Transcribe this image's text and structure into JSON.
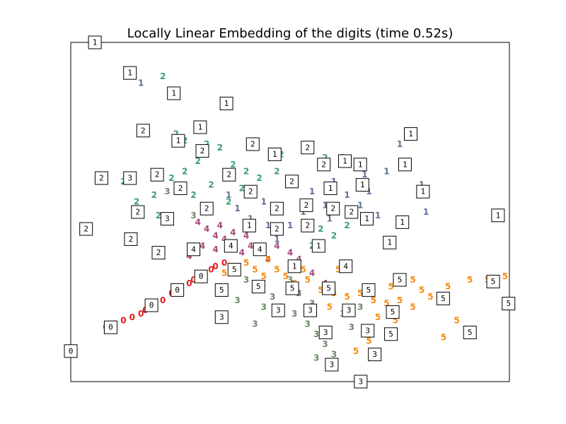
{
  "chart_data": {
    "type": "scatter",
    "title": "Locally Linear Embedding of the digits (time 0.52s)",
    "xlabel": "",
    "ylabel": "",
    "xlim": [
      0,
      1
    ],
    "ylim": [
      0,
      1
    ],
    "grid": false,
    "axis_ticks": false,
    "classes": [
      {
        "label": "0",
        "color": "#e41a1c"
      },
      {
        "label": "1",
        "color": "#5e6e96"
      },
      {
        "label": "2",
        "color": "#3d9b7a"
      },
      {
        "label": "3",
        "color": "#6b8866"
      },
      {
        "label": "4",
        "color": "#a6497a"
      },
      {
        "label": "5",
        "color": "#f58a0c"
      }
    ],
    "points": [
      {
        "x": 0.08,
        "y": 0.16,
        "c": "0"
      },
      {
        "x": 0.1,
        "y": 0.17,
        "c": "0"
      },
      {
        "x": 0.12,
        "y": 0.18,
        "c": "0"
      },
      {
        "x": 0.14,
        "y": 0.19,
        "c": "0"
      },
      {
        "x": 0.16,
        "y": 0.2,
        "c": "0"
      },
      {
        "x": 0.17,
        "y": 0.21,
        "c": "0"
      },
      {
        "x": 0.19,
        "y": 0.23,
        "c": "0"
      },
      {
        "x": 0.21,
        "y": 0.24,
        "c": "0"
      },
      {
        "x": 0.23,
        "y": 0.26,
        "c": "0"
      },
      {
        "x": 0.25,
        "y": 0.27,
        "c": "0"
      },
      {
        "x": 0.27,
        "y": 0.29,
        "c": "0"
      },
      {
        "x": 0.28,
        "y": 0.3,
        "c": "0"
      },
      {
        "x": 0.3,
        "y": 0.31,
        "c": "0"
      },
      {
        "x": 0.32,
        "y": 0.33,
        "c": "0"
      },
      {
        "x": 0.33,
        "y": 0.34,
        "c": "0"
      },
      {
        "x": 0.35,
        "y": 0.35,
        "c": "0"
      },
      {
        "x": 0.16,
        "y": 0.88,
        "c": "1"
      },
      {
        "x": 0.62,
        "y": 0.66,
        "c": "1"
      },
      {
        "x": 0.65,
        "y": 0.64,
        "c": "1"
      },
      {
        "x": 0.67,
        "y": 0.61,
        "c": "1"
      },
      {
        "x": 0.6,
        "y": 0.59,
        "c": "1"
      },
      {
        "x": 0.63,
        "y": 0.55,
        "c": "1"
      },
      {
        "x": 0.66,
        "y": 0.52,
        "c": "1"
      },
      {
        "x": 0.58,
        "y": 0.52,
        "c": "1"
      },
      {
        "x": 0.55,
        "y": 0.56,
        "c": "1"
      },
      {
        "x": 0.53,
        "y": 0.5,
        "c": "1"
      },
      {
        "x": 0.5,
        "y": 0.46,
        "c": "1"
      },
      {
        "x": 0.47,
        "y": 0.42,
        "c": "1"
      },
      {
        "x": 0.45,
        "y": 0.46,
        "c": "1"
      },
      {
        "x": 0.38,
        "y": 0.51,
        "c": "1"
      },
      {
        "x": 0.36,
        "y": 0.55,
        "c": "1"
      },
      {
        "x": 0.72,
        "y": 0.62,
        "c": "1"
      },
      {
        "x": 0.7,
        "y": 0.49,
        "c": "1"
      },
      {
        "x": 0.8,
        "y": 0.58,
        "c": "1"
      },
      {
        "x": 0.81,
        "y": 0.5,
        "c": "1"
      },
      {
        "x": 0.75,
        "y": 0.7,
        "c": "1"
      },
      {
        "x": 0.68,
        "y": 0.56,
        "c": "1"
      },
      {
        "x": 0.59,
        "y": 0.48,
        "c": "1"
      },
      {
        "x": 0.41,
        "y": 0.48,
        "c": "1"
      },
      {
        "x": 0.44,
        "y": 0.53,
        "c": "1"
      },
      {
        "x": 0.21,
        "y": 0.9,
        "c": "2"
      },
      {
        "x": 0.24,
        "y": 0.73,
        "c": "2"
      },
      {
        "x": 0.26,
        "y": 0.71,
        "c": "2"
      },
      {
        "x": 0.31,
        "y": 0.7,
        "c": "2"
      },
      {
        "x": 0.34,
        "y": 0.69,
        "c": "2"
      },
      {
        "x": 0.29,
        "y": 0.65,
        "c": "2"
      },
      {
        "x": 0.26,
        "y": 0.62,
        "c": "2"
      },
      {
        "x": 0.23,
        "y": 0.6,
        "c": "2"
      },
      {
        "x": 0.19,
        "y": 0.55,
        "c": "2"
      },
      {
        "x": 0.15,
        "y": 0.53,
        "c": "2"
      },
      {
        "x": 0.12,
        "y": 0.59,
        "c": "2"
      },
      {
        "x": 0.2,
        "y": 0.49,
        "c": "2"
      },
      {
        "x": 0.37,
        "y": 0.64,
        "c": "2"
      },
      {
        "x": 0.4,
        "y": 0.62,
        "c": "2"
      },
      {
        "x": 0.43,
        "y": 0.6,
        "c": "2"
      },
      {
        "x": 0.47,
        "y": 0.62,
        "c": "2"
      },
      {
        "x": 0.51,
        "y": 0.58,
        "c": "2"
      },
      {
        "x": 0.54,
        "y": 0.68,
        "c": "2"
      },
      {
        "x": 0.58,
        "y": 0.66,
        "c": "2"
      },
      {
        "x": 0.57,
        "y": 0.45,
        "c": "2"
      },
      {
        "x": 0.6,
        "y": 0.43,
        "c": "2"
      },
      {
        "x": 0.32,
        "y": 0.58,
        "c": "2"
      },
      {
        "x": 0.36,
        "y": 0.53,
        "c": "2"
      },
      {
        "x": 0.39,
        "y": 0.57,
        "c": "2"
      },
      {
        "x": 0.28,
        "y": 0.55,
        "c": "2"
      },
      {
        "x": 0.55,
        "y": 0.4,
        "c": "2"
      },
      {
        "x": 0.63,
        "y": 0.46,
        "c": "2"
      },
      {
        "x": 0.48,
        "y": 0.67,
        "c": "2"
      },
      {
        "x": 0.37,
        "y": 0.34,
        "c": "3"
      },
      {
        "x": 0.4,
        "y": 0.3,
        "c": "3"
      },
      {
        "x": 0.43,
        "y": 0.28,
        "c": "3"
      },
      {
        "x": 0.46,
        "y": 0.25,
        "c": "3"
      },
      {
        "x": 0.48,
        "y": 0.22,
        "c": "3"
      },
      {
        "x": 0.51,
        "y": 0.2,
        "c": "3"
      },
      {
        "x": 0.54,
        "y": 0.17,
        "c": "3"
      },
      {
        "x": 0.56,
        "y": 0.14,
        "c": "3"
      },
      {
        "x": 0.58,
        "y": 0.11,
        "c": "3"
      },
      {
        "x": 0.6,
        "y": 0.08,
        "c": "3"
      },
      {
        "x": 0.55,
        "y": 0.23,
        "c": "3"
      },
      {
        "x": 0.52,
        "y": 0.26,
        "c": "3"
      },
      {
        "x": 0.5,
        "y": 0.3,
        "c": "3"
      },
      {
        "x": 0.44,
        "y": 0.22,
        "c": "3"
      },
      {
        "x": 0.42,
        "y": 0.17,
        "c": "3"
      },
      {
        "x": 0.38,
        "y": 0.24,
        "c": "3"
      },
      {
        "x": 0.62,
        "y": 0.2,
        "c": "3"
      },
      {
        "x": 0.64,
        "y": 0.16,
        "c": "3"
      },
      {
        "x": 0.66,
        "y": 0.22,
        "c": "3"
      },
      {
        "x": 0.34,
        "y": 0.26,
        "c": "3"
      },
      {
        "x": 0.28,
        "y": 0.49,
        "c": "3"
      },
      {
        "x": 0.22,
        "y": 0.56,
        "c": "3"
      },
      {
        "x": 0.56,
        "y": 0.07,
        "c": "3"
      },
      {
        "x": 0.29,
        "y": 0.47,
        "c": "4"
      },
      {
        "x": 0.31,
        "y": 0.45,
        "c": "4"
      },
      {
        "x": 0.33,
        "y": 0.43,
        "c": "4"
      },
      {
        "x": 0.35,
        "y": 0.42,
        "c": "4"
      },
      {
        "x": 0.37,
        "y": 0.4,
        "c": "4"
      },
      {
        "x": 0.39,
        "y": 0.38,
        "c": "4"
      },
      {
        "x": 0.41,
        "y": 0.4,
        "c": "4"
      },
      {
        "x": 0.43,
        "y": 0.38,
        "c": "4"
      },
      {
        "x": 0.45,
        "y": 0.36,
        "c": "4"
      },
      {
        "x": 0.34,
        "y": 0.46,
        "c": "4"
      },
      {
        "x": 0.3,
        "y": 0.4,
        "c": "4"
      },
      {
        "x": 0.27,
        "y": 0.37,
        "c": "4"
      },
      {
        "x": 0.37,
        "y": 0.44,
        "c": "4"
      },
      {
        "x": 0.4,
        "y": 0.43,
        "c": "4"
      },
      {
        "x": 0.47,
        "y": 0.4,
        "c": "4"
      },
      {
        "x": 0.5,
        "y": 0.38,
        "c": "4"
      },
      {
        "x": 0.52,
        "y": 0.36,
        "c": "4"
      },
      {
        "x": 0.55,
        "y": 0.32,
        "c": "4"
      },
      {
        "x": 0.58,
        "y": 0.29,
        "c": "4"
      },
      {
        "x": 0.33,
        "y": 0.39,
        "c": "4"
      },
      {
        "x": 0.35,
        "y": 0.32,
        "c": "5"
      },
      {
        "x": 0.38,
        "y": 0.33,
        "c": "5"
      },
      {
        "x": 0.4,
        "y": 0.35,
        "c": "5"
      },
      {
        "x": 0.42,
        "y": 0.33,
        "c": "5"
      },
      {
        "x": 0.44,
        "y": 0.31,
        "c": "5"
      },
      {
        "x": 0.47,
        "y": 0.33,
        "c": "5"
      },
      {
        "x": 0.49,
        "y": 0.31,
        "c": "5"
      },
      {
        "x": 0.51,
        "y": 0.29,
        "c": "5"
      },
      {
        "x": 0.54,
        "y": 0.3,
        "c": "5"
      },
      {
        "x": 0.57,
        "y": 0.27,
        "c": "5"
      },
      {
        "x": 0.6,
        "y": 0.26,
        "c": "5"
      },
      {
        "x": 0.63,
        "y": 0.25,
        "c": "5"
      },
      {
        "x": 0.66,
        "y": 0.26,
        "c": "5"
      },
      {
        "x": 0.69,
        "y": 0.24,
        "c": "5"
      },
      {
        "x": 0.72,
        "y": 0.23,
        "c": "5"
      },
      {
        "x": 0.75,
        "y": 0.24,
        "c": "5"
      },
      {
        "x": 0.78,
        "y": 0.22,
        "c": "5"
      },
      {
        "x": 0.82,
        "y": 0.25,
        "c": "5"
      },
      {
        "x": 0.86,
        "y": 0.28,
        "c": "5"
      },
      {
        "x": 0.91,
        "y": 0.3,
        "c": "5"
      },
      {
        "x": 0.95,
        "y": 0.3,
        "c": "5"
      },
      {
        "x": 0.99,
        "y": 0.31,
        "c": "5"
      },
      {
        "x": 0.7,
        "y": 0.19,
        "c": "5"
      },
      {
        "x": 0.74,
        "y": 0.18,
        "c": "5"
      },
      {
        "x": 0.68,
        "y": 0.12,
        "c": "5"
      },
      {
        "x": 0.65,
        "y": 0.09,
        "c": "5"
      },
      {
        "x": 0.76,
        "y": 0.3,
        "c": "5"
      },
      {
        "x": 0.8,
        "y": 0.27,
        "c": "5"
      },
      {
        "x": 0.88,
        "y": 0.18,
        "c": "5"
      },
      {
        "x": 0.85,
        "y": 0.13,
        "c": "5"
      },
      {
        "x": 0.73,
        "y": 0.28,
        "c": "5"
      },
      {
        "x": 0.61,
        "y": 0.33,
        "c": "5"
      },
      {
        "x": 0.45,
        "y": 0.36,
        "c": "5"
      },
      {
        "x": 0.53,
        "y": 0.33,
        "c": "5"
      },
      {
        "x": 0.59,
        "y": 0.22,
        "c": "5"
      },
      {
        "x": 0.78,
        "y": 0.3,
        "c": "5"
      }
    ],
    "thumbnails": [
      {
        "x": 0.055,
        "y": 1.0,
        "d": "1"
      },
      {
        "x": 0.135,
        "y": 0.91,
        "d": "1"
      },
      {
        "x": 0.235,
        "y": 0.85,
        "d": "1"
      },
      {
        "x": 0.355,
        "y": 0.82,
        "d": "1"
      },
      {
        "x": 0.165,
        "y": 0.74,
        "d": "2"
      },
      {
        "x": 0.295,
        "y": 0.75,
        "d": "1"
      },
      {
        "x": 0.245,
        "y": 0.71,
        "d": "1"
      },
      {
        "x": 0.3,
        "y": 0.68,
        "d": "2"
      },
      {
        "x": 0.415,
        "y": 0.7,
        "d": "2"
      },
      {
        "x": 0.465,
        "y": 0.67,
        "d": "1"
      },
      {
        "x": 0.54,
        "y": 0.69,
        "d": "2"
      },
      {
        "x": 0.577,
        "y": 0.64,
        "d": "2"
      },
      {
        "x": 0.625,
        "y": 0.65,
        "d": "1"
      },
      {
        "x": 0.66,
        "y": 0.64,
        "d": "1"
      },
      {
        "x": 0.775,
        "y": 0.73,
        "d": "1"
      },
      {
        "x": 0.762,
        "y": 0.64,
        "d": "1"
      },
      {
        "x": 0.07,
        "y": 0.6,
        "d": "2"
      },
      {
        "x": 0.135,
        "y": 0.6,
        "d": "3"
      },
      {
        "x": 0.197,
        "y": 0.61,
        "d": "2"
      },
      {
        "x": 0.25,
        "y": 0.57,
        "d": "2"
      },
      {
        "x": 0.361,
        "y": 0.61,
        "d": "2"
      },
      {
        "x": 0.41,
        "y": 0.56,
        "d": "2"
      },
      {
        "x": 0.504,
        "y": 0.59,
        "d": "2"
      },
      {
        "x": 0.592,
        "y": 0.57,
        "d": "1"
      },
      {
        "x": 0.665,
        "y": 0.58,
        "d": "1"
      },
      {
        "x": 0.803,
        "y": 0.56,
        "d": "1"
      },
      {
        "x": 0.153,
        "y": 0.5,
        "d": "2"
      },
      {
        "x": 0.22,
        "y": 0.48,
        "d": "3"
      },
      {
        "x": 0.31,
        "y": 0.51,
        "d": "2"
      },
      {
        "x": 0.47,
        "y": 0.51,
        "d": "2"
      },
      {
        "x": 0.537,
        "y": 0.52,
        "d": "2"
      },
      {
        "x": 0.598,
        "y": 0.51,
        "d": "2"
      },
      {
        "x": 0.64,
        "y": 0.5,
        "d": "2"
      },
      {
        "x": 0.035,
        "y": 0.45,
        "d": "2"
      },
      {
        "x": 0.137,
        "y": 0.42,
        "d": "2"
      },
      {
        "x": 0.407,
        "y": 0.46,
        "d": "1"
      },
      {
        "x": 0.47,
        "y": 0.45,
        "d": "2"
      },
      {
        "x": 0.54,
        "y": 0.46,
        "d": "2"
      },
      {
        "x": 0.675,
        "y": 0.48,
        "d": "1"
      },
      {
        "x": 0.756,
        "y": 0.47,
        "d": "1"
      },
      {
        "x": 0.727,
        "y": 0.41,
        "d": "1"
      },
      {
        "x": 0.974,
        "y": 0.49,
        "d": "1"
      },
      {
        "x": 0.2,
        "y": 0.38,
        "d": "2"
      },
      {
        "x": 0.28,
        "y": 0.39,
        "d": "4"
      },
      {
        "x": 0.365,
        "y": 0.4,
        "d": "4"
      },
      {
        "x": 0.431,
        "y": 0.39,
        "d": "4"
      },
      {
        "x": 0.565,
        "y": 0.4,
        "d": "1"
      },
      {
        "x": 0.627,
        "y": 0.34,
        "d": "4"
      },
      {
        "x": 0.51,
        "y": 0.34,
        "d": "1"
      },
      {
        "x": 0.373,
        "y": 0.33,
        "d": "5"
      },
      {
        "x": 0.297,
        "y": 0.31,
        "d": "0"
      },
      {
        "x": 0.243,
        "y": 0.27,
        "d": "0"
      },
      {
        "x": 0.184,
        "y": 0.225,
        "d": "0"
      },
      {
        "x": 0.091,
        "y": 0.16,
        "d": "0"
      },
      {
        "x": 0.344,
        "y": 0.27,
        "d": "5"
      },
      {
        "x": 0.428,
        "y": 0.28,
        "d": "5"
      },
      {
        "x": 0.505,
        "y": 0.275,
        "d": "5"
      },
      {
        "x": 0.588,
        "y": 0.275,
        "d": "5"
      },
      {
        "x": 0.679,
        "y": 0.27,
        "d": "5"
      },
      {
        "x": 0.75,
        "y": 0.3,
        "d": "5"
      },
      {
        "x": 0.849,
        "y": 0.245,
        "d": "5"
      },
      {
        "x": 0.963,
        "y": 0.295,
        "d": "5"
      },
      {
        "x": 0.998,
        "y": 0.23,
        "d": "5"
      },
      {
        "x": 0.473,
        "y": 0.21,
        "d": "3"
      },
      {
        "x": 0.546,
        "y": 0.21,
        "d": "3"
      },
      {
        "x": 0.634,
        "y": 0.21,
        "d": "3"
      },
      {
        "x": 0.734,
        "y": 0.205,
        "d": "5"
      },
      {
        "x": 0.581,
        "y": 0.145,
        "d": "3"
      },
      {
        "x": 0.677,
        "y": 0.15,
        "d": "3"
      },
      {
        "x": 0.73,
        "y": 0.14,
        "d": "5"
      },
      {
        "x": 0.91,
        "y": 0.145,
        "d": "5"
      },
      {
        "x": 0.693,
        "y": 0.08,
        "d": "3"
      },
      {
        "x": 0.595,
        "y": 0.05,
        "d": "3"
      },
      {
        "x": 0.0,
        "y": 0.09,
        "d": "0"
      },
      {
        "x": 0.661,
        "y": 0.0,
        "d": "3"
      },
      {
        "x": 0.344,
        "y": 0.19,
        "d": "3"
      }
    ]
  }
}
